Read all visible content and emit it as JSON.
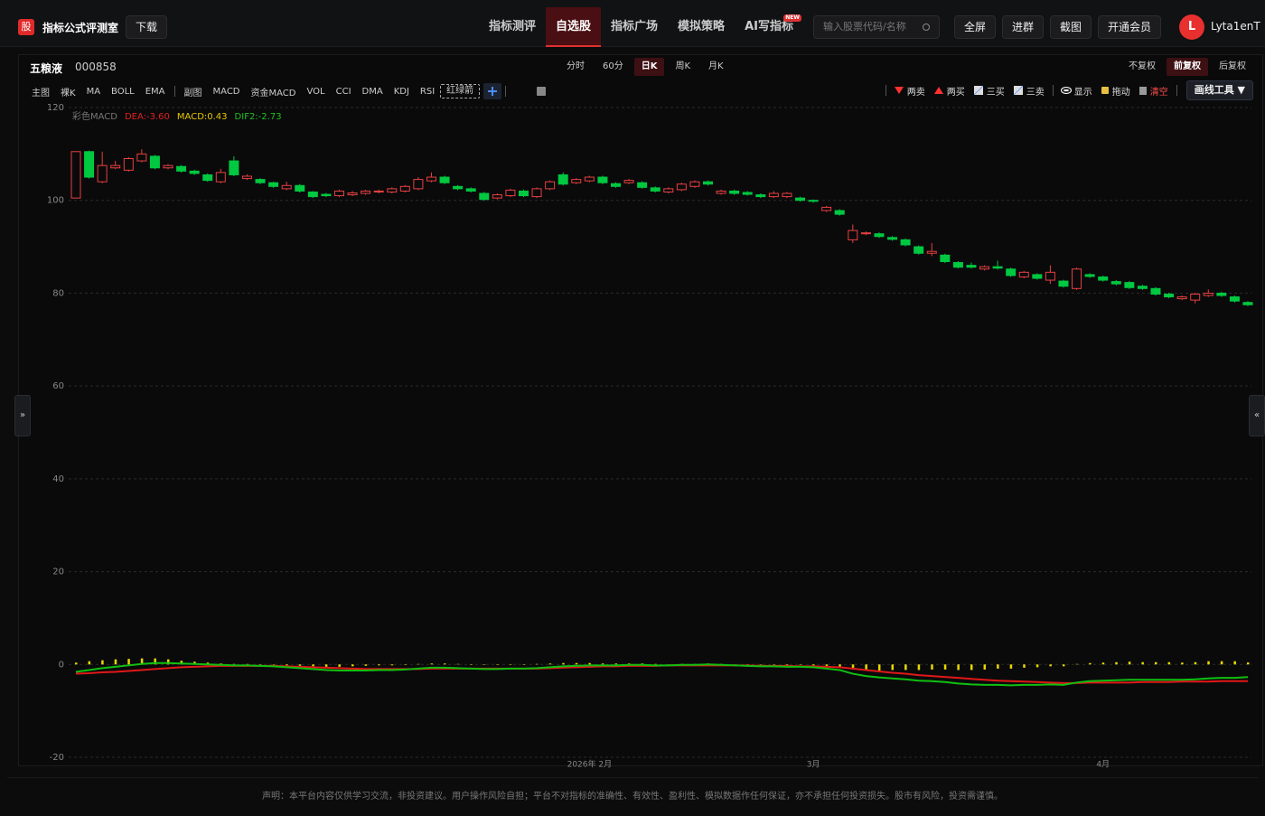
{
  "header": {
    "logo": "股",
    "title": "指标公式评测室",
    "download": "下载"
  },
  "nav": [
    {
      "text": "指标测评",
      "active": false
    },
    {
      "text": "自选股",
      "active": true
    },
    {
      "text": "指标广场",
      "active": false
    },
    {
      "text": "模拟策略",
      "active": false
    },
    {
      "text": "AI写指标",
      "active": false,
      "badge": "NEW"
    }
  ],
  "search_placeholder": "输入股票代码/名称",
  "actions": [
    "全屏",
    "进群",
    "截图",
    "开通会员"
  ],
  "user": {
    "avatar": "L",
    "name": "Lyta1enT"
  },
  "stock": {
    "name": "五粮液",
    "code": "000858"
  },
  "periods": [
    {
      "text": "分时",
      "active": false
    },
    {
      "text": "60分",
      "active": false
    },
    {
      "text": "日K",
      "active": true
    },
    {
      "text": "周K",
      "active": false
    },
    {
      "text": "月K",
      "active": false
    }
  ],
  "adjust": [
    {
      "text": "不复权",
      "active": false
    },
    {
      "text": "前复权",
      "active": true
    },
    {
      "text": "后复权",
      "active": false
    }
  ],
  "toolbar": {
    "main_label": "主图",
    "main": [
      "裸K",
      "MA",
      "BOLL",
      "EMA"
    ],
    "sub_label": "副图",
    "sub": [
      "MACD",
      "资金MACD",
      "VOL",
      "CCI",
      "DMA",
      "KDJ",
      "RSI"
    ],
    "custom": "红绿箭",
    "right": [
      {
        "text": "两卖",
        "icon": "down"
      },
      {
        "text": "两买",
        "icon": "up"
      },
      {
        "text": "三买",
        "icon": "box"
      },
      {
        "text": "三卖",
        "icon": "box"
      },
      {
        "text": "显示",
        "icon": "eye",
        "sep": true
      },
      {
        "text": "拖动",
        "icon": "lock"
      },
      {
        "text": "清空",
        "icon": "bin",
        "color": "#ff4d4d"
      }
    ],
    "draw_tool": "画线工具 ▼"
  },
  "chart_data": {
    "type": "candlestick",
    "indicator_legend": [
      {
        "text": "彩色MACD",
        "color": "#777777"
      },
      {
        "text": "DEA:-3.60",
        "color": "#e02020"
      },
      {
        "text": "MACD:0.43",
        "color": "#e8c800"
      },
      {
        "text": "DIF2:-2.73",
        "color": "#20c020"
      }
    ],
    "up_color": "#e84040",
    "down_color": "#00c840",
    "macd_color": "#e8d800",
    "dif_color": "#10c010",
    "dea_color": "#e01818",
    "ylim": [
      -20,
      120
    ],
    "yticks": [
      120,
      100,
      80,
      60,
      40,
      20,
      0,
      -20
    ],
    "grid": true,
    "categories": [
      null,
      null,
      null,
      null,
      null,
      null,
      null,
      null,
      null,
      null,
      null,
      null,
      null,
      null,
      null,
      null,
      null,
      null,
      null,
      null,
      null,
      null,
      null,
      null,
      null,
      null,
      null,
      null,
      null,
      null,
      null,
      null,
      null,
      null,
      null,
      null,
      null,
      null,
      null,
      "2026年 2月",
      null,
      null,
      null,
      null,
      null,
      null,
      null,
      null,
      null,
      null,
      null,
      null,
      null,
      null,
      null,
      null,
      "3月",
      null,
      null,
      null,
      null,
      null,
      null,
      null,
      null,
      null,
      null,
      null,
      null,
      null,
      null,
      null,
      null,
      null,
      null,
      null,
      null,
      null,
      "4月",
      null,
      null,
      null,
      null,
      null,
      null,
      null,
      null,
      null,
      null,
      null
    ],
    "open": [
      100.5,
      110.5,
      104,
      107,
      106.5,
      108.5,
      109.5,
      107,
      107.3,
      106.3,
      105.5,
      104,
      108.5,
      104.7,
      104.5,
      103.8,
      102.5,
      103.2,
      101.8,
      101.3,
      101,
      101.2,
      101.5,
      101.8,
      101.8,
      102,
      102.5,
      104.2,
      105,
      103,
      102.5,
      101.5,
      100.5,
      101,
      102,
      100.8,
      102.5,
      105.5,
      103.8,
      104.2,
      105,
      103.6,
      103.8,
      103.8,
      102.7,
      101.8,
      102.3,
      103,
      104,
      101.5,
      102,
      101.7,
      101.2,
      100.8,
      100.8,
      100.5,
      100,
      97.8,
      97.8,
      91.5,
      92.8,
      92.8,
      92,
      91.5,
      90,
      88.6,
      88.2,
      86.6,
      86,
      85.2,
      85.7,
      85.2,
      83.5,
      84,
      82.8,
      82.6,
      81,
      84,
      83.5,
      82.5,
      82.3,
      81.5,
      81,
      79.8,
      78.8,
      78.5,
      79.5,
      80,
      79.2,
      78
    ],
    "close": [
      110.5,
      105,
      107.5,
      107.5,
      109,
      110,
      107,
      107.5,
      106.3,
      105.8,
      104.3,
      106,
      105.5,
      105.2,
      103.8,
      103,
      103.2,
      102,
      100.8,
      101,
      102,
      101.6,
      102,
      102,
      102.5,
      103,
      104.5,
      105,
      103.8,
      102.5,
      102,
      100.2,
      101.2,
      102.2,
      101,
      102.5,
      104,
      103.5,
      104.5,
      105,
      103.8,
      103,
      104.3,
      102.8,
      102,
      102.5,
      103.5,
      104,
      103.5,
      102,
      101.5,
      101.3,
      100.8,
      101.5,
      101.5,
      100,
      99.8,
      98.5,
      97,
      93.5,
      93,
      92.2,
      91.6,
      90.4,
      88.6,
      89,
      86.8,
      85.6,
      85.6,
      85.7,
      85.4,
      83.8,
      84.5,
      83.2,
      84.5,
      81.5,
      85.2,
      83.6,
      82.8,
      82,
      81.2,
      81,
      79.8,
      79.2,
      79.2,
      79.8,
      80,
      79.5,
      78.3,
      77.5
    ],
    "high": [
      110.5,
      110.7,
      110.5,
      108.5,
      109.3,
      111,
      109.8,
      107.8,
      107.6,
      106.6,
      105.8,
      106.8,
      109.5,
      105.6,
      104.8,
      104,
      104,
      103.5,
      102,
      101.6,
      102.3,
      102,
      102.3,
      102.3,
      102.8,
      103.3,
      105,
      106,
      105.3,
      103.3,
      102.8,
      101.8,
      101.5,
      102.5,
      102.3,
      102.8,
      104.3,
      106,
      104.8,
      105.3,
      105.3,
      103.9,
      104.6,
      104.1,
      103,
      102.8,
      103.8,
      104.3,
      104.3,
      102.3,
      102.3,
      102,
      101.5,
      102,
      101.8,
      100.8,
      100.2,
      98.8,
      98.1,
      94.8,
      93.3,
      93.1,
      92.3,
      91.8,
      90.3,
      90.8,
      88.5,
      86.9,
      86.6,
      86,
      87,
      85.5,
      84.8,
      84.3,
      86,
      82.9,
      85.5,
      84.3,
      83.8,
      82.8,
      82.6,
      81.8,
      81.3,
      80.1,
      79.5,
      80.1,
      80.8,
      80.3,
      79.5,
      78.3
    ],
    "low": [
      100.5,
      104.7,
      103.7,
      106.7,
      106.2,
      108.2,
      106.7,
      106.7,
      106,
      105.5,
      104,
      103.7,
      105.2,
      104.4,
      103.5,
      102.7,
      102.2,
      101.7,
      100.5,
      100.7,
      100.7,
      100.9,
      101.2,
      101.5,
      101.5,
      101.7,
      102.2,
      103.9,
      103.5,
      102.2,
      101.7,
      99.9,
      100.2,
      100.7,
      100.7,
      100.5,
      102.2,
      103.2,
      103.5,
      103.9,
      103.5,
      102.7,
      103.5,
      102.5,
      101.7,
      101.5,
      102,
      102.7,
      103.2,
      101.2,
      101.2,
      101,
      100.5,
      100.5,
      100.5,
      99.7,
      99.5,
      97.5,
      96.7,
      90.8,
      92.5,
      91.9,
      91.3,
      90.1,
      88.3,
      88,
      86.5,
      85.3,
      85.3,
      84.9,
      85.1,
      83.5,
      83.2,
      82.9,
      82,
      81.2,
      80.7,
      83.3,
      82.5,
      81.7,
      80.9,
      80.7,
      79.5,
      78.9,
      78.5,
      77.8,
      79.2,
      79.2,
      78,
      77.2
    ],
    "dif": [
      -1.6,
      -1.2,
      -0.8,
      -0.5,
      -0.2,
      0.1,
      0.3,
      0.3,
      0.2,
      0.1,
      0,
      -0.1,
      -0.2,
      -0.2,
      -0.3,
      -0.4,
      -0.6,
      -0.8,
      -1.0,
      -1.2,
      -1.3,
      -1.3,
      -1.3,
      -1.2,
      -1.2,
      -1.1,
      -0.9,
      -0.7,
      -0.7,
      -0.8,
      -0.9,
      -1.0,
      -1.0,
      -0.9,
      -0.9,
      -0.8,
      -0.6,
      -0.4,
      -0.3,
      -0.2,
      -0.2,
      -0.2,
      -0.1,
      -0.1,
      -0.2,
      -0.2,
      -0.1,
      -0.1,
      0,
      -0.1,
      -0.2,
      -0.3,
      -0.4,
      -0.4,
      -0.5,
      -0.5,
      -0.6,
      -0.9,
      -1.2,
      -2.0,
      -2.5,
      -2.8,
      -3.0,
      -3.2,
      -3.5,
      -3.6,
      -3.8,
      -4.1,
      -4.3,
      -4.4,
      -4.4,
      -4.5,
      -4.4,
      -4.4,
      -4.3,
      -4.4,
      -3.9,
      -3.6,
      -3.5,
      -3.4,
      -3.3,
      -3.3,
      -3.3,
      -3.3,
      -3.3,
      -3.2,
      -3.0,
      -2.9,
      -2.9,
      -2.73
    ],
    "dea": [
      -2.0,
      -1.9,
      -1.7,
      -1.6,
      -1.4,
      -1.2,
      -1.0,
      -0.8,
      -0.6,
      -0.5,
      -0.4,
      -0.3,
      -0.3,
      -0.3,
      -0.3,
      -0.3,
      -0.4,
      -0.5,
      -0.6,
      -0.7,
      -0.8,
      -0.9,
      -1.0,
      -1.0,
      -1.0,
      -1.0,
      -1.0,
      -0.9,
      -0.9,
      -0.9,
      -0.9,
      -0.9,
      -0.9,
      -0.9,
      -0.9,
      -0.9,
      -0.8,
      -0.7,
      -0.6,
      -0.5,
      -0.4,
      -0.4,
      -0.3,
      -0.3,
      -0.3,
      -0.2,
      -0.2,
      -0.2,
      -0.2,
      -0.2,
      -0.2,
      -0.2,
      -0.3,
      -0.3,
      -0.3,
      -0.4,
      -0.4,
      -0.5,
      -0.6,
      -0.9,
      -1.2,
      -1.5,
      -1.8,
      -2.0,
      -2.3,
      -2.5,
      -2.7,
      -2.9,
      -3.1,
      -3.3,
      -3.5,
      -3.6,
      -3.7,
      -3.8,
      -3.9,
      -4.0,
      -4.0,
      -3.9,
      -3.9,
      -3.9,
      -3.9,
      -3.8,
      -3.8,
      -3.8,
      -3.7,
      -3.7,
      -3.7,
      -3.6,
      -3.6,
      -3.6
    ],
    "macd": [
      0.4,
      0.7,
      0.9,
      1.1,
      1.2,
      1.3,
      1.3,
      1.1,
      0.8,
      0.6,
      0.4,
      0.2,
      0.1,
      0.1,
      0,
      -0.1,
      -0.2,
      -0.3,
      -0.4,
      -0.5,
      -0.5,
      -0.4,
      -0.3,
      -0.2,
      -0.2,
      -0.1,
      0.1,
      0.2,
      0.2,
      0.1,
      0,
      -0.1,
      -0.1,
      0,
      0,
      0.1,
      0.2,
      0.3,
      0.3,
      0.3,
      0.2,
      0.2,
      0.2,
      0.2,
      0.1,
      0,
      0.1,
      0.1,
      0.2,
      0.1,
      0,
      -0.1,
      -0.1,
      -0.1,
      -0.2,
      -0.1,
      -0.2,
      -0.4,
      -0.6,
      -1.1,
      -1.3,
      -1.3,
      -1.2,
      -1.2,
      -1.2,
      -1.1,
      -1.1,
      -1.2,
      -1.2,
      -1.1,
      -0.9,
      -0.9,
      -0.7,
      -0.6,
      -0.4,
      -0.4,
      0.1,
      0.3,
      0.4,
      0.5,
      0.6,
      0.5,
      0.5,
      0.5,
      0.4,
      0.5,
      0.7,
      0.7,
      0.7,
      0.43
    ]
  },
  "footer": "声明：本平台内容仅供学习交流，非投资建议。用户操作风险自担；平台不对指标的准确性、有效性、盈利性、模拟数据作任何保证，亦不承担任何投资损失。股市有风险，投资需谨慎。"
}
